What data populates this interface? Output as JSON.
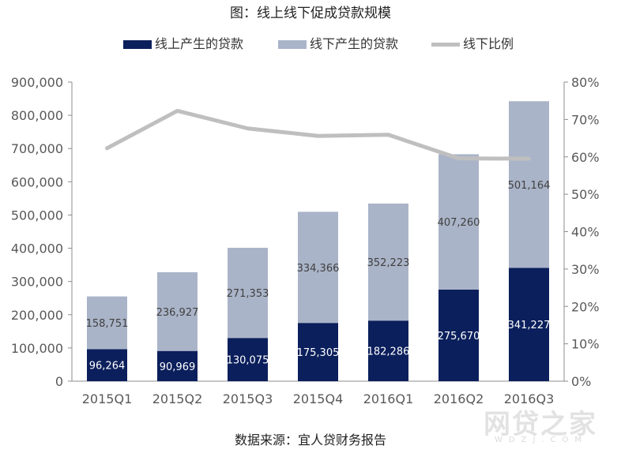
{
  "chart_data": {
    "type": "bar",
    "title": "图：线上线下促成贷款规模",
    "categories": [
      "2015Q1",
      "2015Q2",
      "2015Q3",
      "2015Q4",
      "2016Q1",
      "2016Q2",
      "2016Q3"
    ],
    "series": [
      {
        "name": "线上产生的贷款",
        "type": "stacked-bar",
        "axis": "left",
        "color": "#0b1f5c",
        "values": [
          96264,
          90969,
          130075,
          175305,
          182286,
          275670,
          341227
        ]
      },
      {
        "name": "线下产生的贷款",
        "type": "stacked-bar",
        "axis": "left",
        "color": "#aab4c8",
        "values": [
          158751,
          236927,
          271353,
          334366,
          352223,
          407260,
          501164
        ]
      },
      {
        "name": "线下比例",
        "type": "line",
        "axis": "right",
        "color": "#bfbfbf",
        "values": [
          0.623,
          0.723,
          0.676,
          0.656,
          0.659,
          0.596,
          0.595
        ]
      }
    ],
    "ylim_left": [
      0,
      900000
    ],
    "yticks_left": [
      "0",
      "100,000",
      "200,000",
      "300,000",
      "400,000",
      "500,000",
      "600,000",
      "700,000",
      "800,000",
      "900,000"
    ],
    "ylim_right": [
      0,
      0.8
    ],
    "yticks_right": [
      "0%",
      "10%",
      "20%",
      "30%",
      "40%",
      "50%",
      "60%",
      "70%",
      "80%"
    ],
    "legend_position": "top",
    "grid": false
  },
  "source": "数据来源：宜人贷财务报告",
  "watermark": "网贷之家",
  "watermark_sub": "WDZJ.COM"
}
